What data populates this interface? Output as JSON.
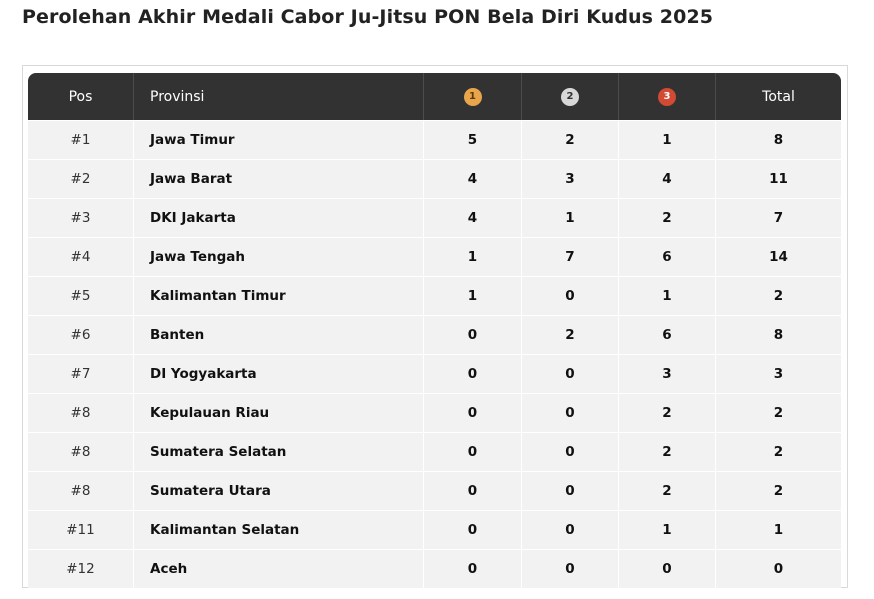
{
  "title": "Perolehan Akhir Medali Cabor Ju-Jitsu PON Bela Diri Kudus 2025",
  "header": {
    "pos": "Pos",
    "provinsi": "Provinsi",
    "gold": "1",
    "silver": "2",
    "bronze": "3",
    "total": "Total"
  },
  "colors": {
    "gold": "#e8a54b",
    "silver": "#d8d8d8",
    "bronze": "#d04a34",
    "header_bg": "#333232",
    "row_bg": "#f2f2f2"
  },
  "rows": [
    {
      "pos": "#1",
      "provinsi": "Jawa Timur",
      "gold": "5",
      "silver": "2",
      "bronze": "1",
      "total": "8"
    },
    {
      "pos": "#2",
      "provinsi": "Jawa Barat",
      "gold": "4",
      "silver": "3",
      "bronze": "4",
      "total": "11"
    },
    {
      "pos": "#3",
      "provinsi": "DKI Jakarta",
      "gold": "4",
      "silver": "1",
      "bronze": "2",
      "total": "7"
    },
    {
      "pos": "#4",
      "provinsi": "Jawa Tengah",
      "gold": "1",
      "silver": "7",
      "bronze": "6",
      "total": "14"
    },
    {
      "pos": "#5",
      "provinsi": "Kalimantan Timur",
      "gold": "1",
      "silver": "0",
      "bronze": "1",
      "total": "2"
    },
    {
      "pos": "#6",
      "provinsi": "Banten",
      "gold": "0",
      "silver": "2",
      "bronze": "6",
      "total": "8"
    },
    {
      "pos": "#7",
      "provinsi": "DI Yogyakarta",
      "gold": "0",
      "silver": "0",
      "bronze": "3",
      "total": "3"
    },
    {
      "pos": "#8",
      "provinsi": "Kepulauan Riau",
      "gold": "0",
      "silver": "0",
      "bronze": "2",
      "total": "2"
    },
    {
      "pos": "#8",
      "provinsi": "Sumatera Selatan",
      "gold": "0",
      "silver": "0",
      "bronze": "2",
      "total": "2"
    },
    {
      "pos": "#8",
      "provinsi": "Sumatera Utara",
      "gold": "0",
      "silver": "0",
      "bronze": "2",
      "total": "2"
    },
    {
      "pos": "#11",
      "provinsi": "Kalimantan Selatan",
      "gold": "0",
      "silver": "0",
      "bronze": "1",
      "total": "1"
    },
    {
      "pos": "#12",
      "provinsi": "Aceh",
      "gold": "0",
      "silver": "0",
      "bronze": "0",
      "total": "0"
    }
  ]
}
